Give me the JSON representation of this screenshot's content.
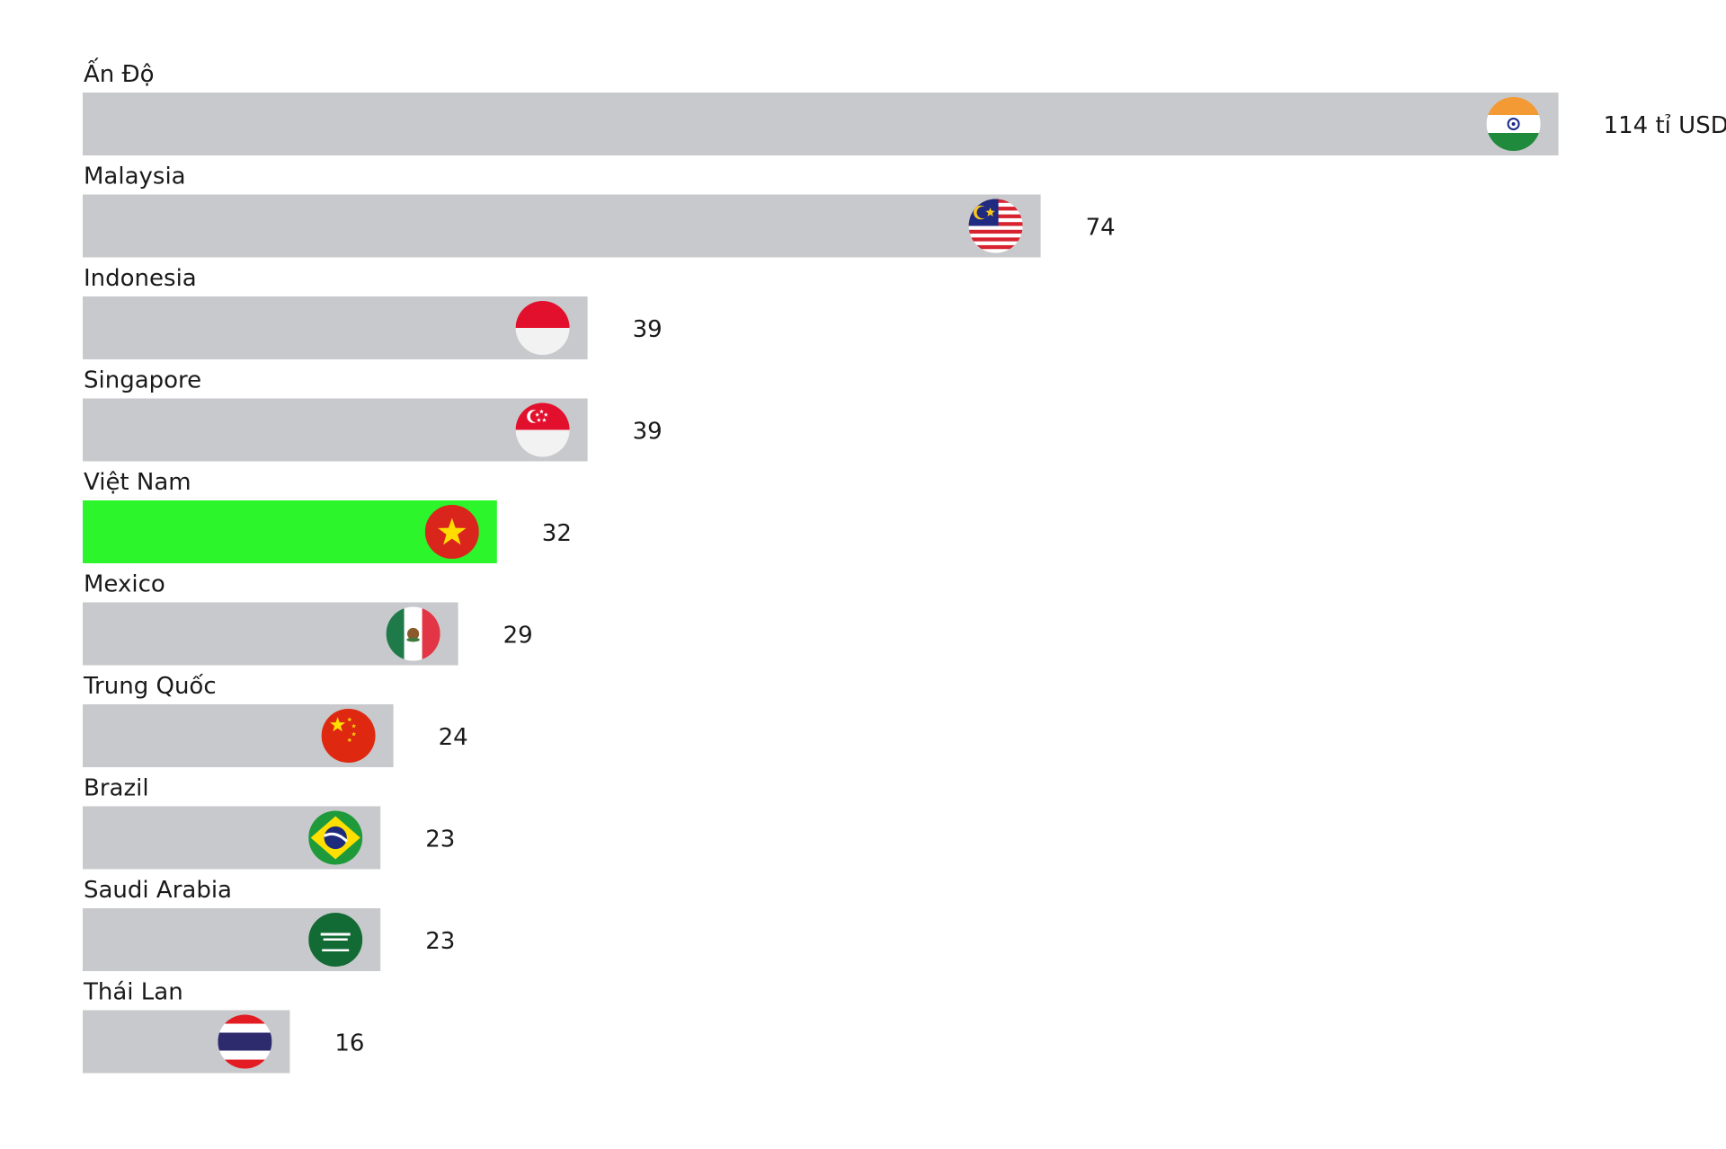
{
  "chart_data": {
    "type": "bar",
    "orientation": "horizontal",
    "title": "",
    "xlabel": "",
    "ylabel": "",
    "unit": "tỉ USD",
    "xlim": [
      0,
      114
    ],
    "grid": false,
    "legend": "none",
    "bar_color": "#c8c9cc",
    "highlight_color": "#2cf52c",
    "highlight_category": "Việt Nam",
    "categories": [
      "Ấn Độ",
      "Malaysia",
      "Indonesia",
      "Singapore",
      "Việt Nam",
      "Mexico",
      "Trung Quốc",
      "Brazil",
      "Saudi Arabia",
      "Thái Lan"
    ],
    "values": [
      114,
      74,
      39,
      39,
      32,
      29,
      24,
      23,
      23,
      16
    ],
    "value_labels": [
      "114 tỉ USD",
      "74",
      "39",
      "39",
      "32",
      "29",
      "24",
      "23",
      "23",
      "16"
    ],
    "flag_icons": [
      "india-flag-icon",
      "malaysia-flag-icon",
      "indonesia-flag-icon",
      "singapore-flag-icon",
      "vietnam-flag-icon",
      "mexico-flag-icon",
      "china-flag-icon",
      "brazil-flag-icon",
      "saudi-arabia-flag-icon",
      "thailand-flag-icon"
    ]
  }
}
